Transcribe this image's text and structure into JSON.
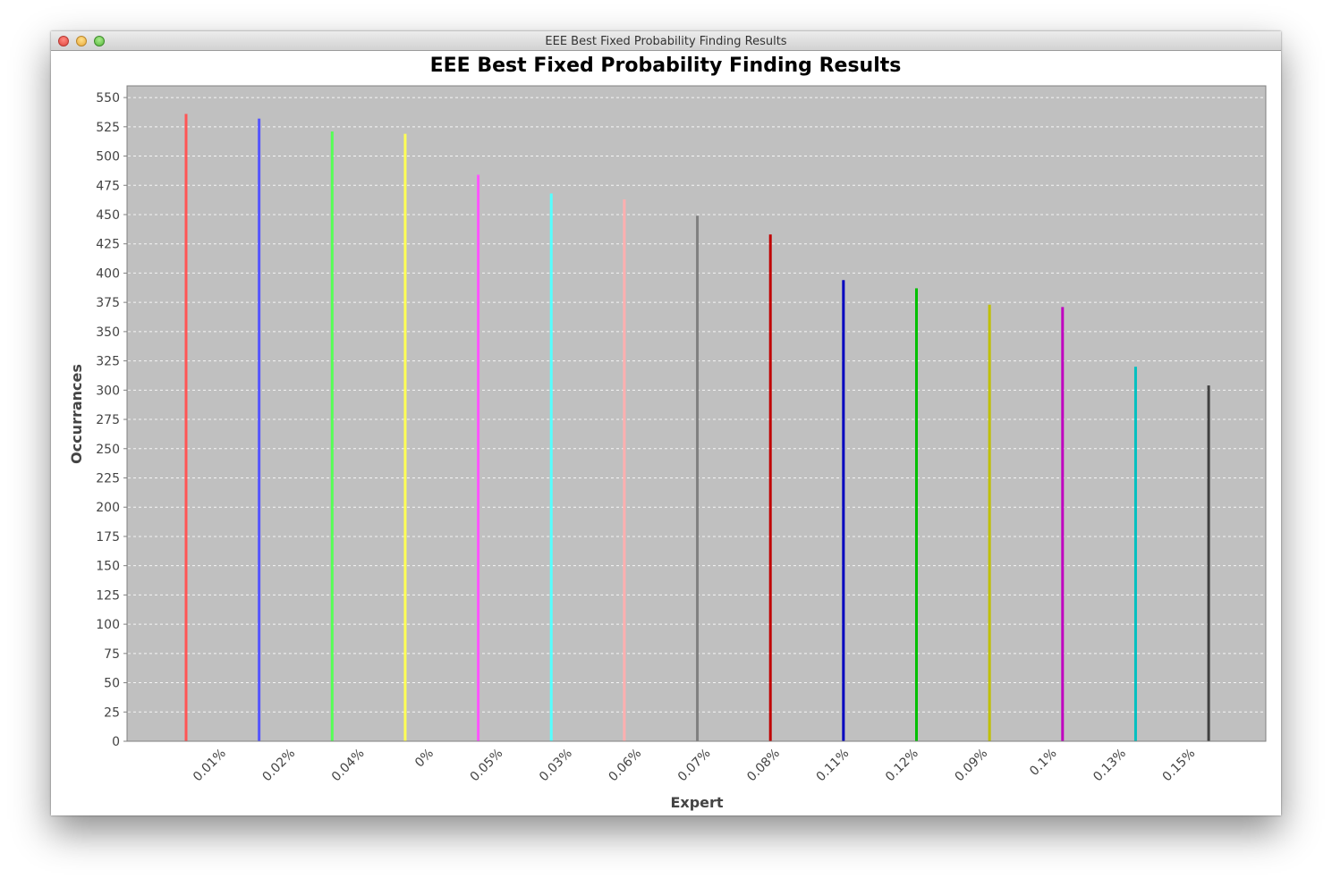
{
  "window": {
    "title": "EEE Best Fixed Probability Finding Results"
  },
  "chart_data": {
    "type": "bar",
    "title": "EEE Best Fixed Probability Finding Results",
    "xlabel": "Expert",
    "ylabel": "Occurrances",
    "ylim": [
      0,
      560
    ],
    "yticks": [
      0,
      25,
      50,
      75,
      100,
      125,
      150,
      175,
      200,
      225,
      250,
      275,
      300,
      325,
      350,
      375,
      400,
      425,
      450,
      475,
      500,
      525,
      550
    ],
    "grid": true,
    "legend": "none",
    "plot_background": "#c0c0c0",
    "categories": [
      "0.01%",
      "0.02%",
      "0.04%",
      "0%",
      "0.05%",
      "0.03%",
      "0.06%",
      "0.07%",
      "0.08%",
      "0.11%",
      "0.12%",
      "0.09%",
      "0.1%",
      "0.13%",
      "0.15%"
    ],
    "values": [
      536,
      532,
      521,
      519,
      484,
      468,
      463,
      449,
      433,
      394,
      387,
      373,
      371,
      320,
      304
    ],
    "colors": [
      "#ff5555",
      "#5555ff",
      "#55ff55",
      "#ffff55",
      "#ff55ff",
      "#55ffff",
      "#ffafaf",
      "#808080",
      "#c00000",
      "#0000c0",
      "#00c000",
      "#c0c000",
      "#c000c0",
      "#00c0c0",
      "#404040"
    ]
  }
}
